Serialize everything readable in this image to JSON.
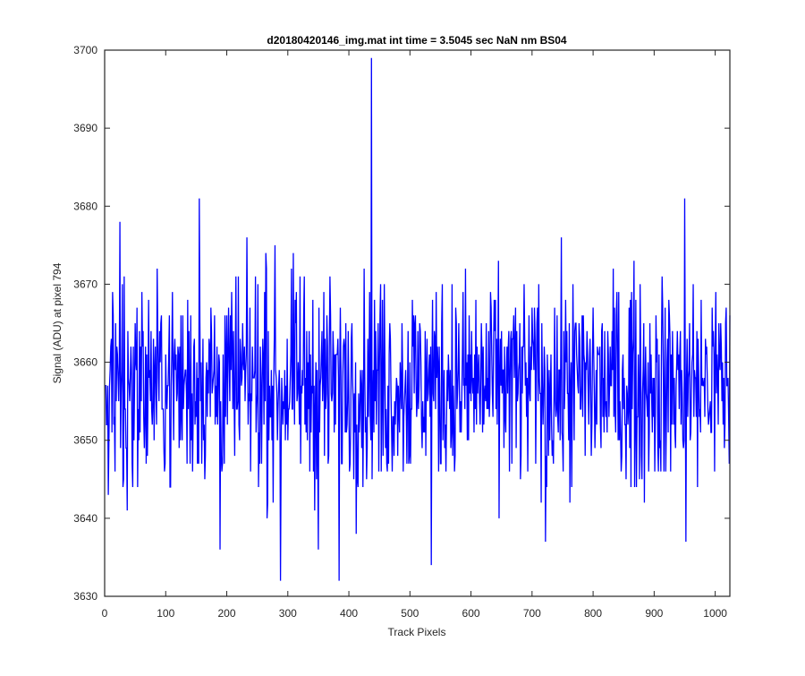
{
  "chart_data": {
    "type": "line",
    "title": "d20180420146_img.mat int time = 3.5045 sec  NaN nm BS04",
    "xlabel": "Track Pixels",
    "ylabel": "Signal (ADU) at pixel 794",
    "xlim": [
      0,
      1024
    ],
    "ylim": [
      3630,
      3700
    ],
    "xticks": [
      0,
      100,
      200,
      300,
      400,
      500,
      600,
      700,
      800,
      900,
      1000
    ],
    "yticks": [
      3630,
      3640,
      3650,
      3660,
      3670,
      3680,
      3690,
      3700
    ],
    "grid": false,
    "legend": "none",
    "line_color": "#0000ff",
    "series": [
      {
        "baseline": 3657.3,
        "spread": 6.5,
        "n_points": 1024,
        "peaks": [
          [
            155,
            3681
          ],
          [
            437,
            3699
          ],
          [
            950,
            3681
          ],
          [
            711,
            3670
          ],
          [
            25,
            3678
          ],
          [
            264,
            3674
          ]
        ],
        "troughs": [
          [
            288,
            3632
          ],
          [
            384,
            3632
          ],
          [
            535,
            3634
          ],
          [
            189,
            3636
          ],
          [
            350,
            3636
          ],
          [
            722,
            3637
          ],
          [
            952,
            3637
          ]
        ]
      }
    ]
  }
}
